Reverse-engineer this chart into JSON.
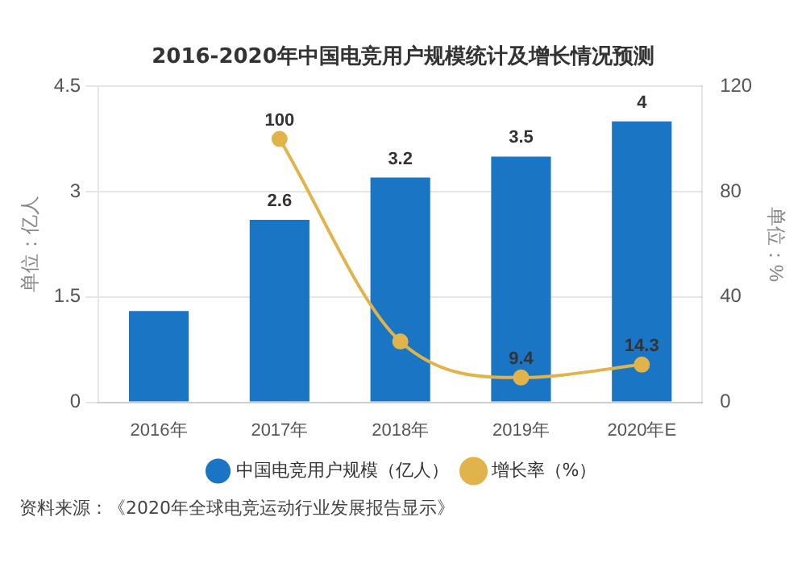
{
  "chart_data": {
    "type": "bar",
    "title": "2016-2020年中国电竞用户规模统计及增长情况预测",
    "categories": [
      "2016年",
      "2017年",
      "2018年",
      "2019年",
      "2020年E"
    ],
    "series": [
      {
        "name": "中国电竞用户规模（亿人）",
        "color": "#1a75c4",
        "values": [
          1.3,
          2.6,
          3.2,
          3.5,
          4
        ],
        "value_labels": [
          null,
          "2.6",
          "3.2",
          "3.5",
          "4"
        ]
      },
      {
        "name": "增长率（%）",
        "type": "line",
        "axis": "y2",
        "color": "#e0b44a",
        "values": [
          null,
          100,
          23.1,
          9.4,
          14.3
        ],
        "value_labels": [
          null,
          "100",
          null,
          "9.4",
          "14.3"
        ],
        "marker": "circle"
      }
    ],
    "ylabel": "单位：亿人",
    "y2label": "单位：%",
    "ylim": [
      0,
      4.5
    ],
    "yticks": [
      0,
      1.5,
      3,
      4.5
    ],
    "y2lim": [
      0,
      120
    ],
    "y2ticks": [
      0,
      40,
      80,
      120
    ],
    "grid": "y",
    "legend": "bottom",
    "annotations": [
      "资料来源：《2020年全球电竞运动行业发展报告显示》"
    ]
  }
}
